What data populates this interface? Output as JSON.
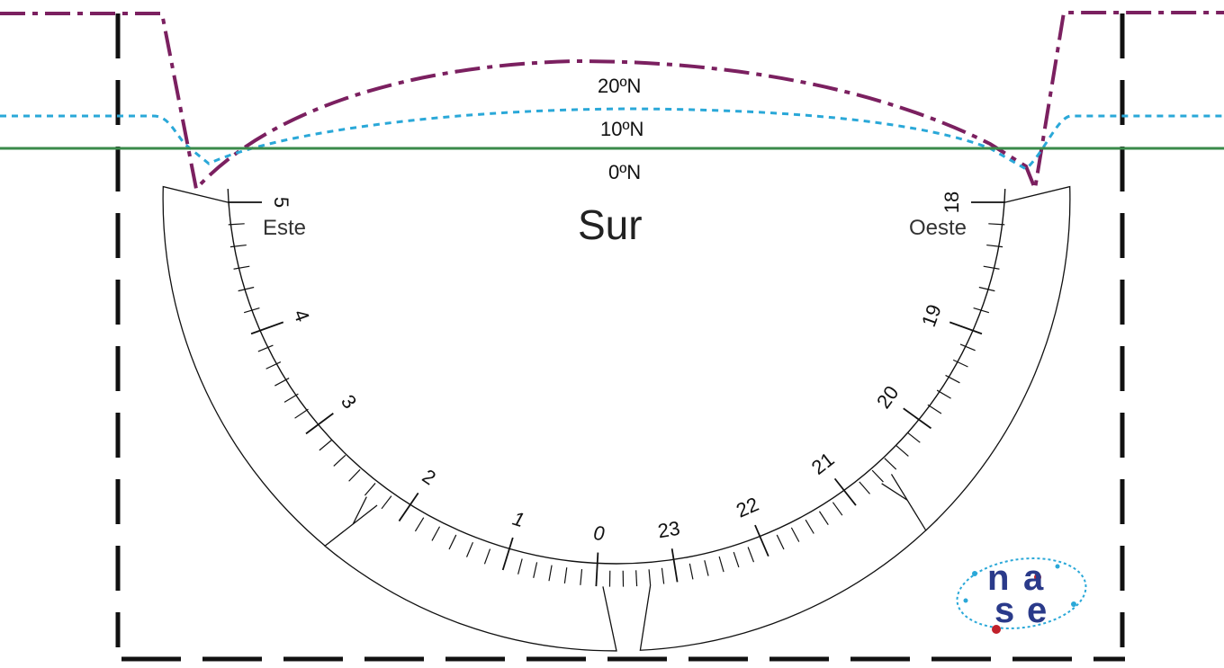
{
  "title": "Sur",
  "labels": {
    "east": "Este",
    "west": "Oeste"
  },
  "latitudes": [
    {
      "label": "20ºN",
      "color": "#7b2060",
      "style": "dash-dot"
    },
    {
      "label": "10ºN",
      "color": "#2aa8d8",
      "style": "dotted"
    },
    {
      "label": "0ºN",
      "color": "#3a8a4a",
      "style": "solid"
    }
  ],
  "hour_marks": [
    "5",
    "4",
    "3",
    "2",
    "1",
    "0",
    "23",
    "22",
    "21",
    "20",
    "19",
    "18"
  ],
  "logo": {
    "name": "nase",
    "letters": [
      "n",
      "a",
      "s",
      "e"
    ],
    "color": "#2a3a8a",
    "accent": "#c0202a"
  },
  "colors": {
    "outline": "#111111",
    "purple": "#7b2060",
    "cyan": "#2aa8d8",
    "green": "#3a8a4a"
  }
}
